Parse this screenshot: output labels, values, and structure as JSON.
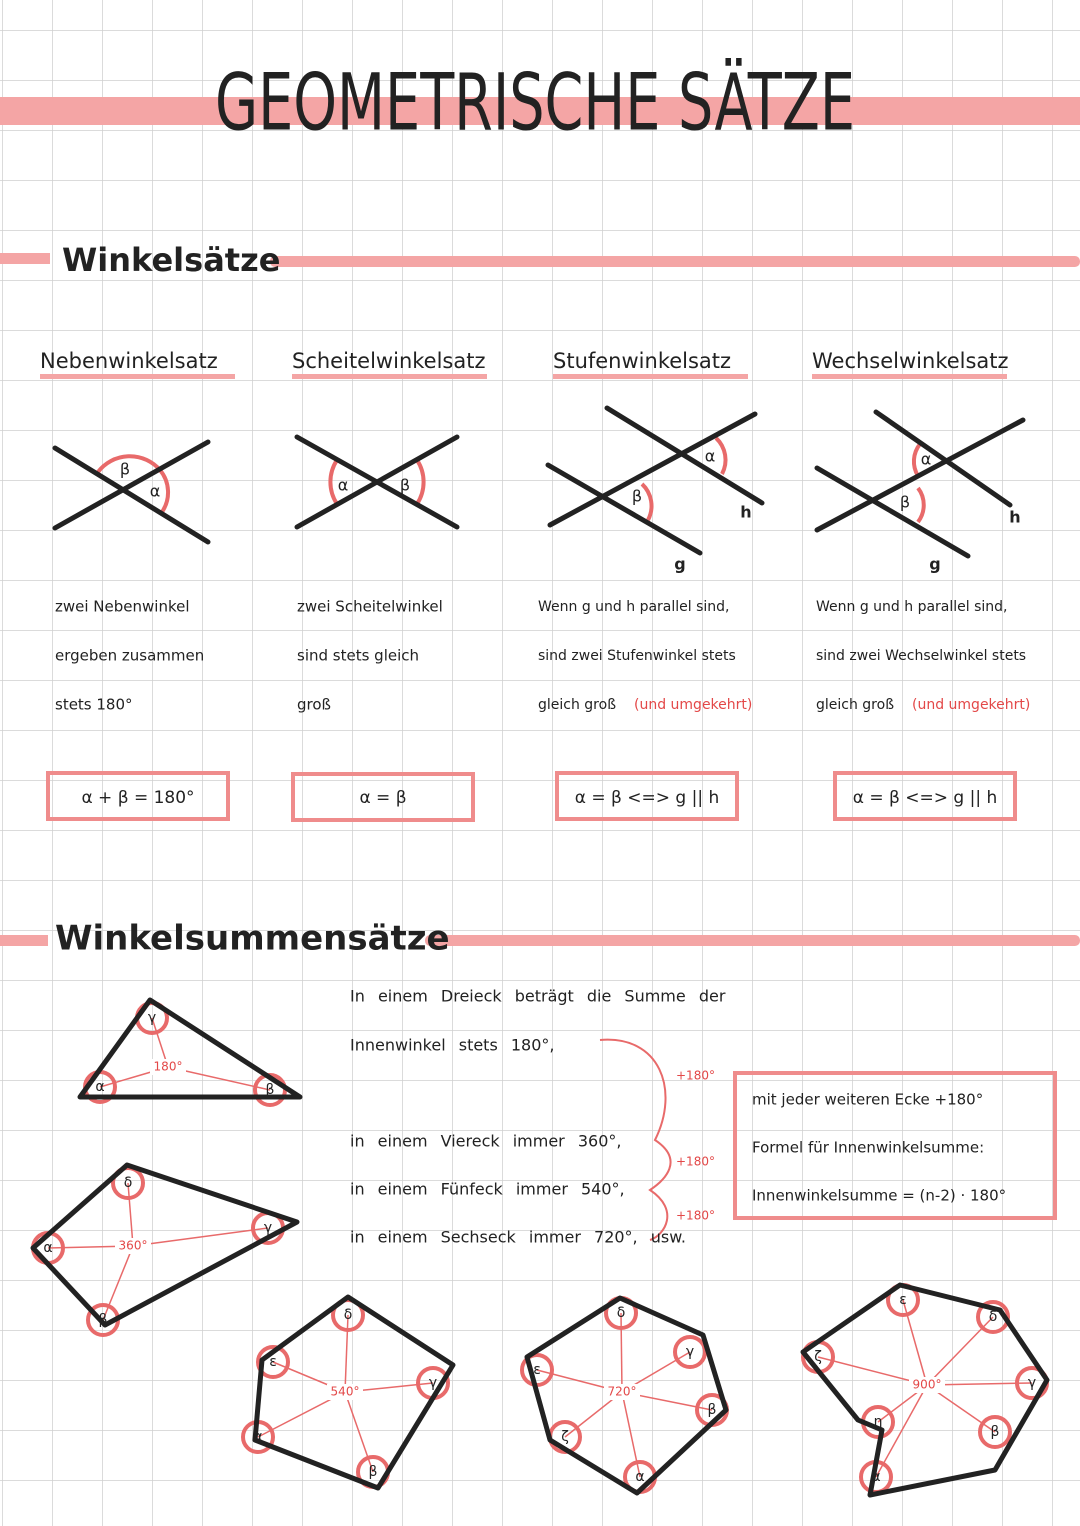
{
  "title": "GEOMETRISCHE SÄTZE",
  "section1": {
    "heading": "Winkelsätze",
    "theorems": [
      {
        "name": "Nebenwinkelsatz",
        "labels": [
          "β",
          "α"
        ],
        "lines": [
          "zwei Nebenwinkel",
          "ergeben zusammen",
          "stets 180°"
        ],
        "formula": "α + β = 180°"
      },
      {
        "name": "Scheitelwinkelsatz",
        "labels": [
          "α",
          "β"
        ],
        "lines": [
          "zwei Scheitelwinkel",
          "sind stets gleich",
          "groß"
        ],
        "formula": "α = β"
      },
      {
        "name": "Stufenwinkelsatz",
        "labels": [
          "α",
          "β",
          "h",
          "g"
        ],
        "lines": [
          "Wenn g und h parallel sind,",
          "sind zwei Stufenwinkel stets",
          "gleich groß"
        ],
        "remark": "(und umgekehrt)",
        "formula": "α = β <=> g || h"
      },
      {
        "name": "Wechselwinkelsatz",
        "labels": [
          "α",
          "β",
          "h",
          "g"
        ],
        "lines": [
          "Wenn g und h parallel sind,",
          "sind zwei Wechselwinkel stets",
          "gleich groß"
        ],
        "remark": "(und umgekehrt)",
        "formula": "α = β <=> g || h"
      }
    ]
  },
  "section2": {
    "heading": "Winkelsummensätze",
    "lines": [
      "In einem Dreieck beträgt die Summe der",
      "Innenwinkel stets 180°,",
      "in einem Viereck immer 360°,",
      "in einem Fünfeck immer 540°,",
      "in einem Sechseck immer 720°, usw."
    ],
    "increments": [
      "+180°",
      "+180°",
      "+180°"
    ],
    "note": [
      "mit jeder weiteren Ecke +180°",
      "Formel für Innenwinkelsumme:",
      "Innenwinkelsumme = (n-2) · 180°"
    ],
    "shapes": [
      {
        "center": "180°",
        "labels": [
          "γ",
          "α",
          "β"
        ]
      },
      {
        "center": "360°",
        "labels": [
          "δ",
          "γ",
          "α",
          "β"
        ]
      },
      {
        "center": "540°",
        "labels": [
          "δ",
          "ε",
          "γ",
          "α",
          "β"
        ]
      },
      {
        "center": "720°",
        "labels": [
          "δ",
          "ε",
          "γ",
          "β",
          "ζ",
          "α"
        ]
      },
      {
        "center": "900°",
        "labels": [
          "ε",
          "δ",
          "ζ",
          "γ",
          "η",
          "β",
          "α"
        ]
      }
    ]
  }
}
